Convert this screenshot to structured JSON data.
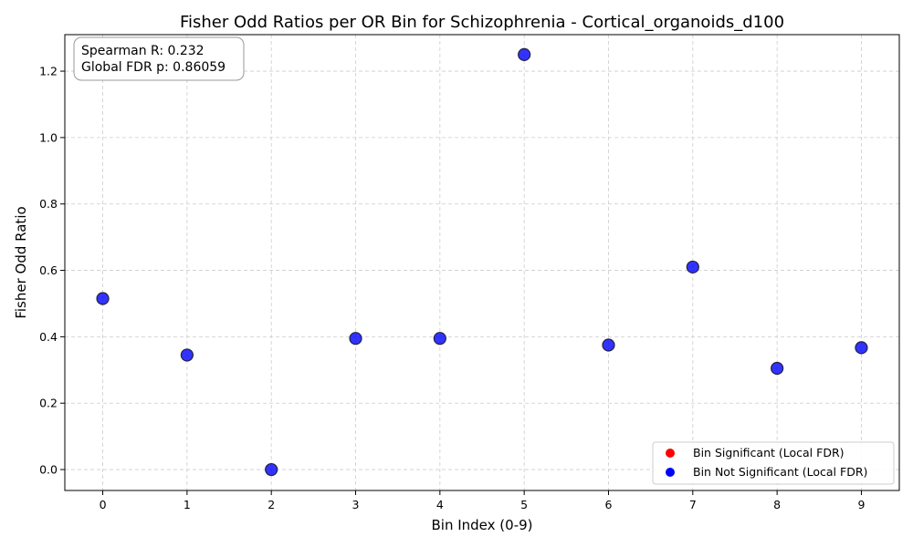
{
  "chart_data": {
    "type": "scatter",
    "title": "Fisher Odd Ratios per OR Bin for Schizophrenia - Cortical_organoids_d100",
    "xlabel": "Bin Index (0-9)",
    "ylabel": "Fisher Odd Ratio",
    "xlim": [
      -0.45,
      9.45
    ],
    "ylim": [
      -0.063,
      1.31
    ],
    "xticks": [
      0,
      1,
      2,
      3,
      4,
      5,
      6,
      7,
      8,
      9
    ],
    "yticks": [
      0.0,
      0.2,
      0.4,
      0.6,
      0.8,
      1.0,
      1.2
    ],
    "grid": true,
    "legend_position": "bottom-right",
    "legend": [
      {
        "label": "Bin Significant (Local FDR)",
        "color": "#ff0000"
      },
      {
        "label": "Bin Not Significant (Local FDR)",
        "color": "#0000ff"
      }
    ],
    "series": [
      {
        "color": "#0000ff",
        "x": [
          0,
          1,
          2,
          3,
          4,
          5,
          6,
          7,
          8,
          9
        ],
        "y": [
          0.515,
          0.345,
          0.0,
          0.395,
          0.395,
          1.25,
          0.375,
          0.61,
          0.305,
          0.367
        ]
      }
    ],
    "annotation": {
      "lines": [
        "Spearman R: 0.232",
        "Global FDR p: 0.86059"
      ],
      "position": "top-left"
    }
  }
}
